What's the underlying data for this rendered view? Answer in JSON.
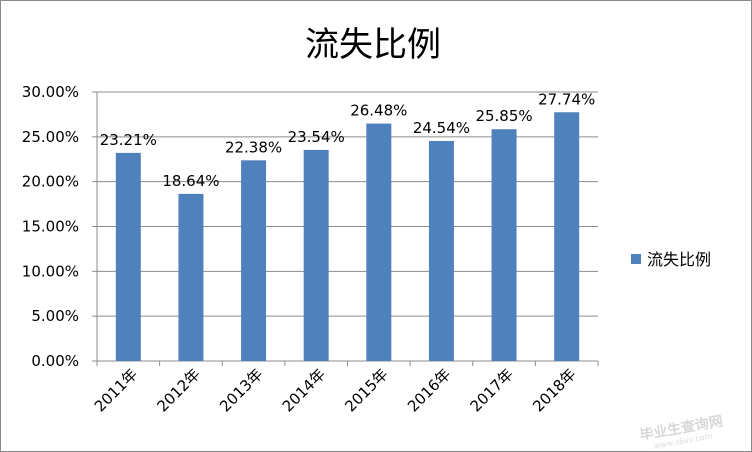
{
  "chart_data": {
    "type": "bar",
    "title": "流失比例",
    "categories": [
      "2011年",
      "2012年",
      "2013年",
      "2014年",
      "2015年",
      "2016年",
      "2017年",
      "2018年"
    ],
    "series": [
      {
        "name": "流失比例",
        "values": [
          23.21,
          18.64,
          22.38,
          23.54,
          26.48,
          24.54,
          25.85,
          27.74
        ],
        "labels": [
          "23.21%",
          "18.64%",
          "22.38%",
          "23.54%",
          "26.48%",
          "24.54%",
          "25.85%",
          "27.74%"
        ],
        "color": "#4F81BD"
      }
    ],
    "ylim": [
      0,
      30
    ],
    "yticks": [
      "0.00%",
      "5.00%",
      "10.00%",
      "15.00%",
      "20.00%",
      "25.00%",
      "30.00%"
    ],
    "grid": true,
    "legend_position": "right"
  },
  "watermark": {
    "text": "毕业生查询网",
    "sub": "www.s6vv.com"
  }
}
